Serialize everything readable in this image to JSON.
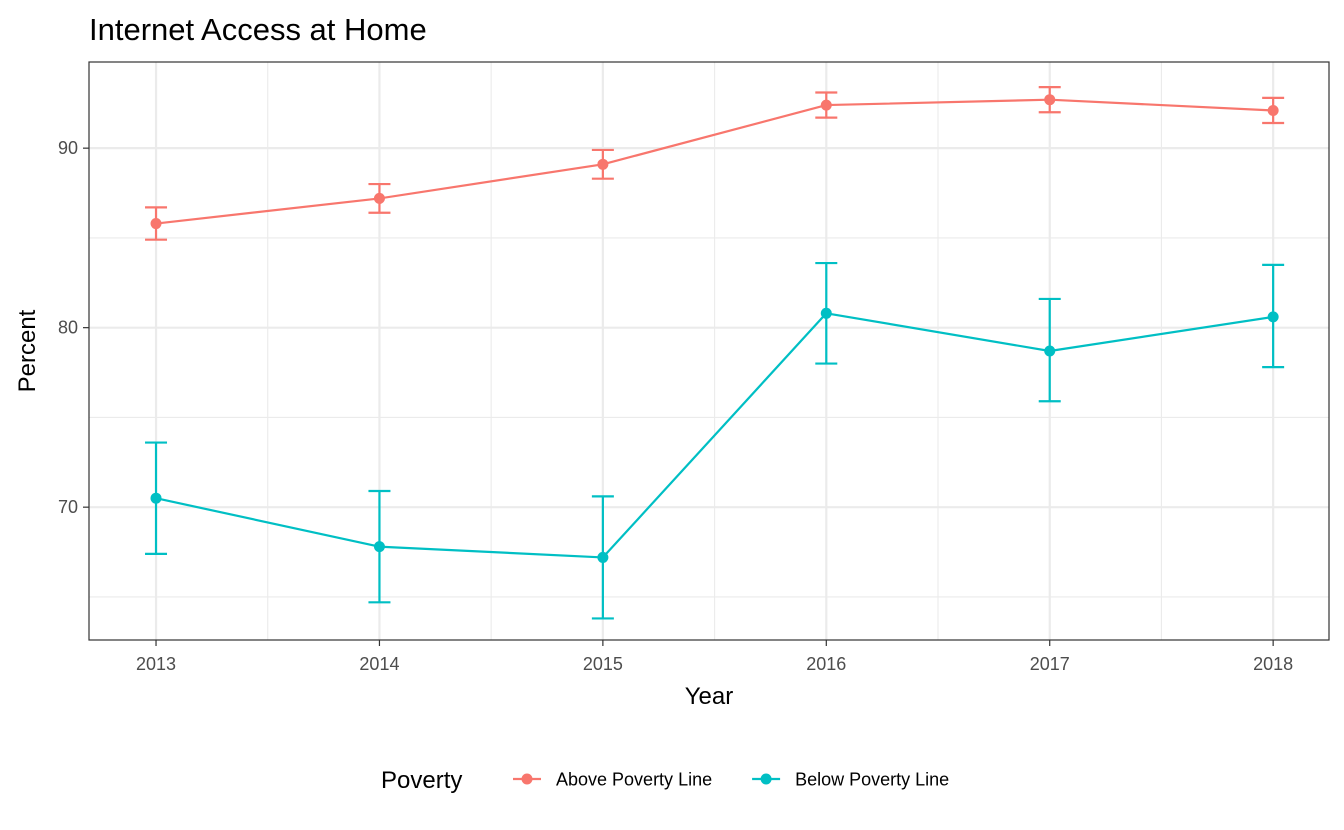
{
  "chart_data": {
    "type": "line",
    "title": "Internet Access at Home",
    "xlabel": "Year",
    "ylabel": "Percent",
    "x": [
      2013,
      2014,
      2015,
      2016,
      2017,
      2018
    ],
    "x_tick_labels": [
      "2013",
      "2014",
      "2015",
      "2016",
      "2017",
      "2018"
    ],
    "y_ticks": [
      70,
      80,
      90
    ],
    "y_tick_labels": [
      "70",
      "80",
      "90"
    ],
    "xlim": [
      2012.7,
      2018.25
    ],
    "ylim": [
      62.6,
      94.8
    ],
    "grid": true,
    "error_bars": true,
    "legend": {
      "title": "Poverty",
      "position": "bottom"
    },
    "series": [
      {
        "name": "Above Poverty Line",
        "color": "#F8766D",
        "values": [
          85.8,
          87.2,
          89.1,
          92.4,
          92.7,
          92.1
        ],
        "lower": [
          84.9,
          86.4,
          88.3,
          91.7,
          92.0,
          91.4
        ],
        "upper": [
          86.7,
          88.0,
          89.9,
          93.1,
          93.4,
          92.8
        ]
      },
      {
        "name": "Below Poverty Line",
        "color": "#00BFC4",
        "values": [
          70.5,
          67.8,
          67.2,
          80.8,
          78.7,
          80.6
        ],
        "lower": [
          67.4,
          64.7,
          63.8,
          78.0,
          75.9,
          77.8
        ],
        "upper": [
          73.6,
          70.9,
          70.6,
          83.6,
          81.6,
          83.5
        ]
      }
    ]
  }
}
